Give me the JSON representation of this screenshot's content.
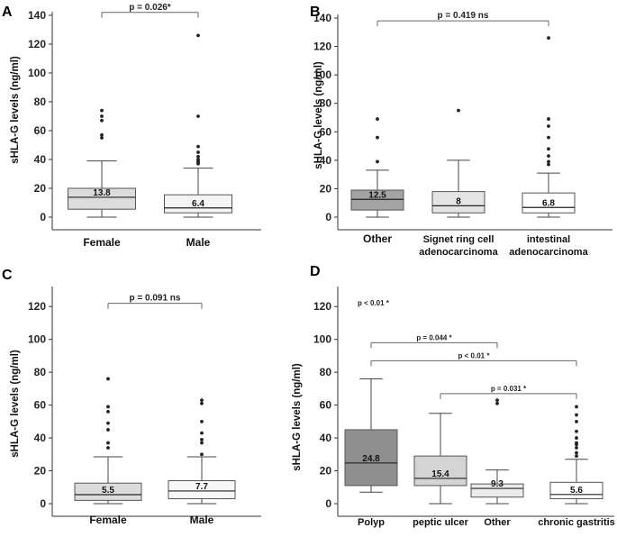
{
  "chart_data": [
    {
      "panel": "A",
      "type": "box",
      "ylabel": "sHLA-G levels (ng/ml)",
      "ylim": [
        0,
        140
      ],
      "yticks": [
        0,
        20,
        40,
        60,
        80,
        100,
        120,
        140
      ],
      "categories": [
        "Female",
        "Male"
      ],
      "boxes": [
        {
          "label": "Female",
          "min": 0,
          "q1": 5.5,
          "median": 13.8,
          "q3": 20,
          "max": 39,
          "median_label": "13.8",
          "fill": "#dcdcdc",
          "outliers": [
            55,
            57,
            67,
            70,
            74
          ]
        },
        {
          "label": "Male",
          "min": 0,
          "q1": 3,
          "median": 6.4,
          "q3": 15.5,
          "max": 34,
          "median_label": "6.4",
          "fill": "#f4f4f4",
          "outliers": [
            37,
            38,
            39,
            40,
            42,
            45,
            49,
            70,
            126
          ]
        }
      ],
      "comparisons": [
        {
          "from": 0,
          "to": 1,
          "y": 142,
          "text": "p = 0.026*"
        }
      ]
    },
    {
      "panel": "B",
      "type": "box",
      "ylabel": "sHLA-G levels (ng/ml)",
      "ylim": [
        0,
        140
      ],
      "yticks": [
        0,
        20,
        40,
        60,
        80,
        100,
        120,
        140
      ],
      "categories": [
        "Other",
        "Signet ring cell\nadenocarcinoma",
        "intestinal\nadenocarcinoma"
      ],
      "boxes": [
        {
          "label": "Other",
          "min": 0,
          "q1": 5,
          "median": 12.5,
          "q3": 19,
          "max": 33,
          "median_label": "12.5",
          "fill": "#a3a3a3",
          "outliers": [
            39,
            56,
            69
          ]
        },
        {
          "label": "Signet ring cell adenocarcinoma",
          "min": 0,
          "q1": 3,
          "median": 8,
          "q3": 18,
          "max": 40,
          "median_label": "8",
          "fill": "#e4e4e4",
          "outliers": [
            75
          ]
        },
        {
          "label": "intestinal adenocarcinoma",
          "min": 0,
          "q1": 3,
          "median": 6.8,
          "q3": 17,
          "max": 31,
          "median_label": "6.8",
          "fill": "#ffffff",
          "outliers": [
            37,
            39,
            43,
            48,
            56,
            64,
            69,
            126
          ]
        }
      ],
      "comparisons": [
        {
          "from": 0,
          "to": 2,
          "y": 138,
          "text": "p = 0.419 ns"
        }
      ]
    },
    {
      "panel": "C",
      "type": "box",
      "ylabel": "sHLA-G levels (ng/ml)",
      "ylim": [
        0,
        130
      ],
      "yticks": [
        0,
        20,
        40,
        60,
        80,
        100,
        120
      ],
      "categories": [
        "Female",
        "Male"
      ],
      "boxes": [
        {
          "label": "Female",
          "min": 0,
          "q1": 2,
          "median": 5.5,
          "q3": 12.5,
          "max": 28.5,
          "median_label": "5.5",
          "fill": "#dcdcdc",
          "outliers": [
            34,
            37,
            45,
            49,
            56,
            59,
            76
          ]
        },
        {
          "label": "Male",
          "min": 0,
          "q1": 3,
          "median": 7.7,
          "q3": 14,
          "max": 28.5,
          "median_label": "7.7",
          "fill": "#f7f7f7",
          "outliers": [
            30,
            37,
            39,
            43,
            50,
            61,
            63
          ]
        }
      ],
      "comparisons": [
        {
          "from": 0,
          "to": 1,
          "y": 122,
          "text": "p = 0.091 ns"
        }
      ]
    },
    {
      "panel": "D",
      "type": "box",
      "ylabel": "sHLA-G levels (ng/ml)",
      "ylim": [
        0,
        130
      ],
      "yticks": [
        0,
        20,
        40,
        60,
        80,
        100,
        120
      ],
      "categories": [
        "Polyp",
        "peptic ulcer",
        "Other",
        "chronic gastritis"
      ],
      "boxes": [
        {
          "label": "Polyp",
          "min": 7,
          "q1": 11,
          "median": 24.8,
          "q3": 45,
          "max": 76,
          "median_label": "24.8",
          "fill": "#8f8f8f",
          "outliers": []
        },
        {
          "label": "peptic ulcer",
          "min": 0,
          "q1": 11,
          "median": 15.4,
          "q3": 29,
          "max": 55,
          "median_label": "15.4",
          "fill": "#d4d4d4",
          "outliers": []
        },
        {
          "label": "Other",
          "min": 0,
          "q1": 4,
          "median": 9.3,
          "q3": 12,
          "max": 20.5,
          "median_label": "9.3",
          "fill": "#ececec",
          "outliers": [
            61,
            63
          ]
        },
        {
          "label": "chronic gastritis",
          "min": 0,
          "q1": 3,
          "median": 5.6,
          "q3": 13,
          "max": 27,
          "median_label": "5.6",
          "fill": "#ffffff",
          "outliers": [
            29,
            31,
            34,
            36,
            37,
            40,
            44,
            50,
            54,
            59
          ]
        }
      ],
      "comparisons": [
        {
          "from": 0,
          "to": 2,
          "y": 98,
          "text": "p = 0.044 *"
        },
        {
          "from": 0,
          "to": 3,
          "y": 87,
          "text": "p < 0.01 *"
        },
        {
          "from": 1,
          "to": 3,
          "y": 67,
          "text": "p = 0.031 *"
        }
      ],
      "annotation": "p < 0.01 *"
    }
  ]
}
